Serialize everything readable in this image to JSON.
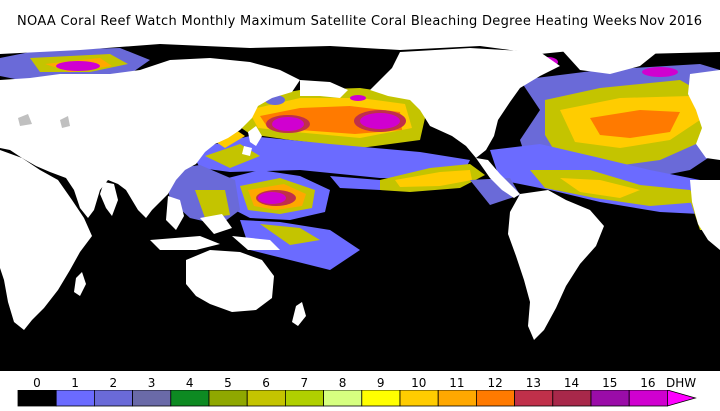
{
  "title": "NOAA Coral Reef Watch Monthly Maximum Satellite Coral Bleaching Degree Heating Weeks",
  "date": "Nov 2016",
  "legend": {
    "unit": "DHW",
    "ticks": [
      "0",
      "1",
      "2",
      "3",
      "4",
      "5",
      "6",
      "7",
      "8",
      "9",
      "10",
      "11",
      "12",
      "13",
      "14",
      "15",
      "16"
    ],
    "colors": [
      "#000000",
      "#6b6bff",
      "#6a6ad8",
      "#6a6aa8",
      "#0d8a22",
      "#8fa800",
      "#c4c400",
      "#b0d000",
      "#d6ff80",
      "#ffff00",
      "#ffcc00",
      "#ffa800",
      "#ff7a00",
      "#c0304a",
      "#a8284a",
      "#9a0ca8",
      "#d000d0",
      "#ff00ff"
    ]
  },
  "colors": {
    "land": "#ffffff",
    "ocean_zero": "#000000",
    "lake": "#c0c0c0"
  }
}
